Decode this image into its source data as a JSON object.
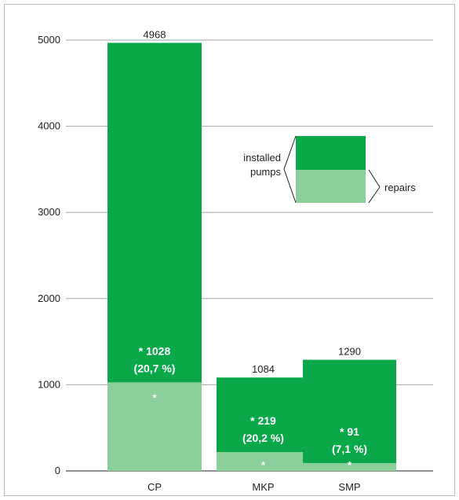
{
  "chart_data": {
    "type": "bar",
    "categories": [
      "CP",
      "MKP",
      "SMP"
    ],
    "series": [
      {
        "name": "installed pumps",
        "values": [
          4968,
          1084,
          1290
        ]
      },
      {
        "name": "repairs",
        "values": [
          1028,
          219,
          91
        ]
      }
    ],
    "ylim": [
      0,
      5000
    ],
    "yticks": [
      "0",
      "1000",
      "2000",
      "3000",
      "4000",
      "5000"
    ],
    "total_labels": [
      "4968",
      "1084",
      "1290"
    ],
    "repair_labels": [
      "* 1028",
      "* 219",
      "* 91"
    ],
    "repair_pct_labels": [
      "(20,7 %)",
      "(20,2 %)",
      "(7,1 %)"
    ],
    "star_marks": [
      "*",
      "*",
      "*"
    ],
    "grid": true,
    "legend": {
      "placement": "top-right",
      "installed_label_line1": "installed",
      "installed_label_line2": "pumps",
      "repairs_label": "repairs"
    },
    "colors": {
      "installed": "#0ba84a",
      "repairs": "#8dcf9b",
      "grid": "#a6a6a6",
      "frame": "#bdbdbd"
    }
  }
}
